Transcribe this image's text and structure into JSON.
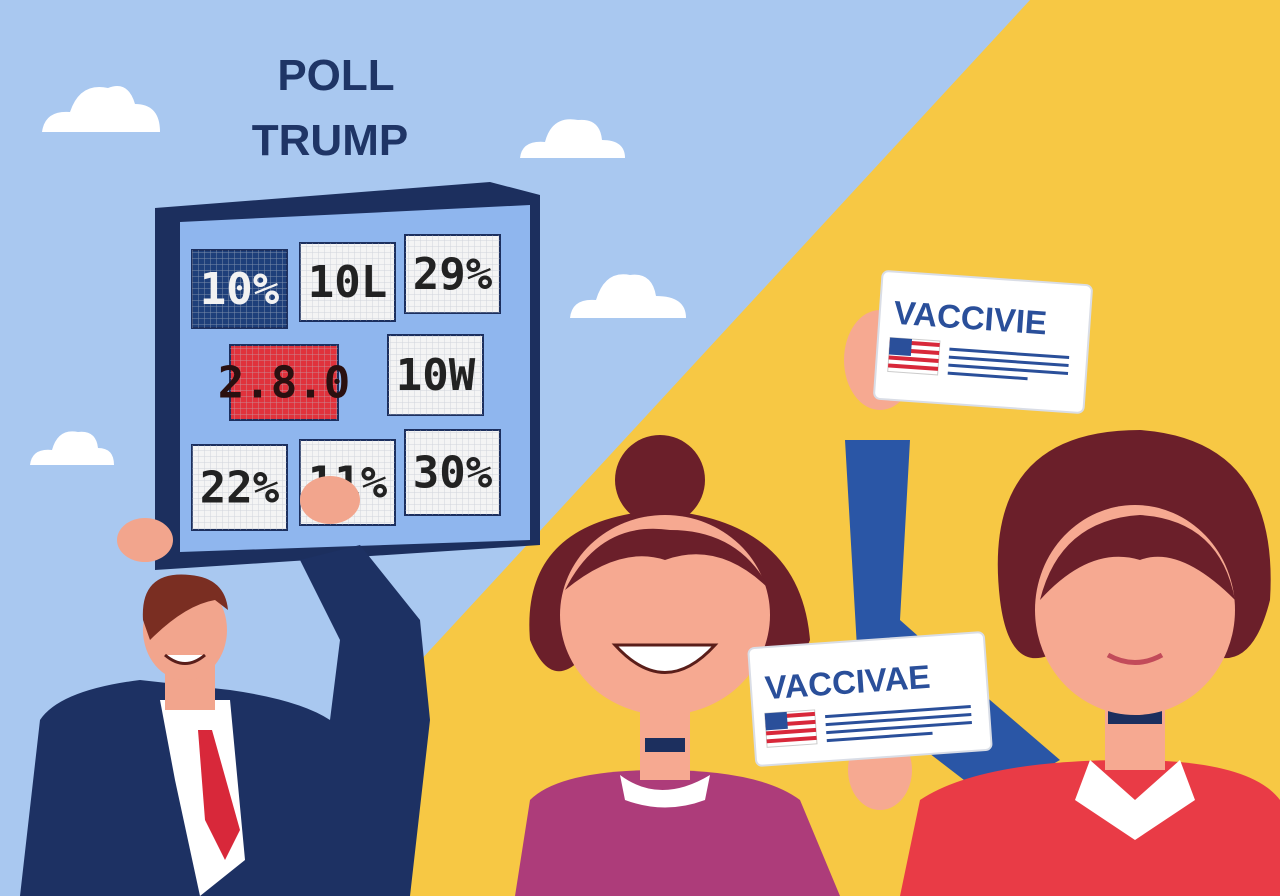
{
  "heading": {
    "line1": "POLL",
    "line2": "TRUMP"
  },
  "board": {
    "cells": [
      "10%",
      "10L",
      "29%",
      "2.8.0",
      "10W",
      "22%",
      "11%",
      "30%"
    ]
  },
  "signs": [
    "VACCIVIE",
    "VACCIVAE"
  ]
}
